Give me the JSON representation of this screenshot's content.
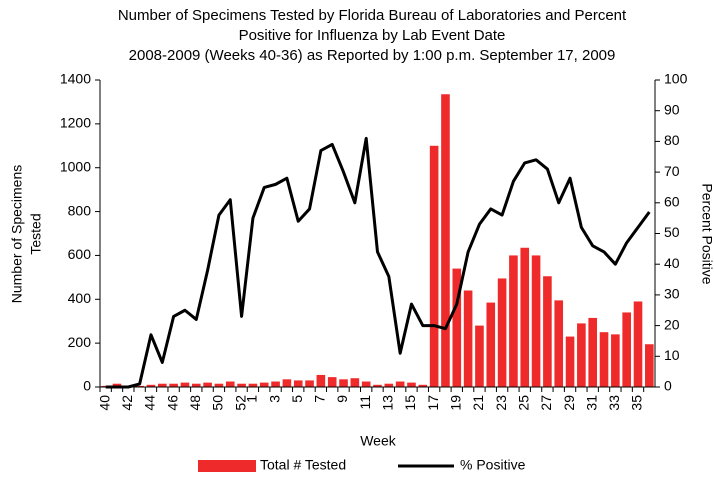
{
  "chart_data": {
    "type": "bar_line",
    "title": [
      "Number of Specimens Tested by Florida Bureau of Laboratories and Percent",
      "Positive for Influenza by Lab Event Date",
      "2008-2009 (Weeks 40-36) as Reported by 1:00 p.m. September 17, 2009"
    ],
    "x_label": "Week",
    "y_label": [
      "Number of Specimens",
      "Tested"
    ],
    "y2_label": "Percent Positive",
    "categories": [
      "40",
      null,
      "42",
      null,
      "44",
      null,
      "46",
      null,
      "48",
      null,
      "50",
      null,
      "52",
      "1",
      null,
      "3",
      null,
      "5",
      null,
      "7",
      null,
      "9",
      null,
      "11",
      null,
      "13",
      null,
      "15",
      null,
      "17",
      null,
      "19",
      null,
      "21",
      null,
      "23",
      null,
      "25",
      null,
      "27",
      null,
      "29",
      null,
      "31",
      null,
      "33",
      null,
      "35",
      null
    ],
    "series": [
      {
        "name": "Total # Tested",
        "color": "#ee2a2a",
        "kind": "bar",
        "values": [
          5,
          15,
          5,
          5,
          10,
          15,
          15,
          20,
          15,
          20,
          15,
          25,
          15,
          15,
          20,
          25,
          35,
          30,
          30,
          55,
          45,
          35,
          40,
          25,
          10,
          15,
          25,
          20,
          10,
          1100,
          1335,
          540,
          440,
          280,
          385,
          495,
          600,
          635,
          600,
          505,
          395,
          230,
          290,
          315,
          250,
          240,
          340,
          390,
          195
        ]
      },
      {
        "name": "% Positive",
        "color": "#000000",
        "kind": "line",
        "axis": "y2",
        "values": [
          0,
          0,
          0,
          1,
          17,
          8,
          23,
          25,
          22,
          38,
          56,
          61,
          23,
          55,
          65,
          66,
          68,
          54,
          58,
          77,
          79,
          70,
          60,
          81,
          44,
          36,
          11,
          27,
          20,
          20,
          19,
          27,
          44,
          53,
          58,
          56,
          67,
          73,
          74,
          71,
          60,
          68,
          52,
          46,
          44,
          40,
          47,
          52,
          57
        ]
      }
    ],
    "ylim": [
      0,
      1400
    ],
    "yticks": [
      0,
      200,
      400,
      600,
      800,
      1000,
      1200,
      1400
    ],
    "y2lim": [
      0,
      100
    ],
    "y2ticks": [
      0,
      10,
      20,
      30,
      40,
      50,
      60,
      70,
      80,
      90,
      100
    ],
    "legend": "bottom",
    "grid": false
  }
}
